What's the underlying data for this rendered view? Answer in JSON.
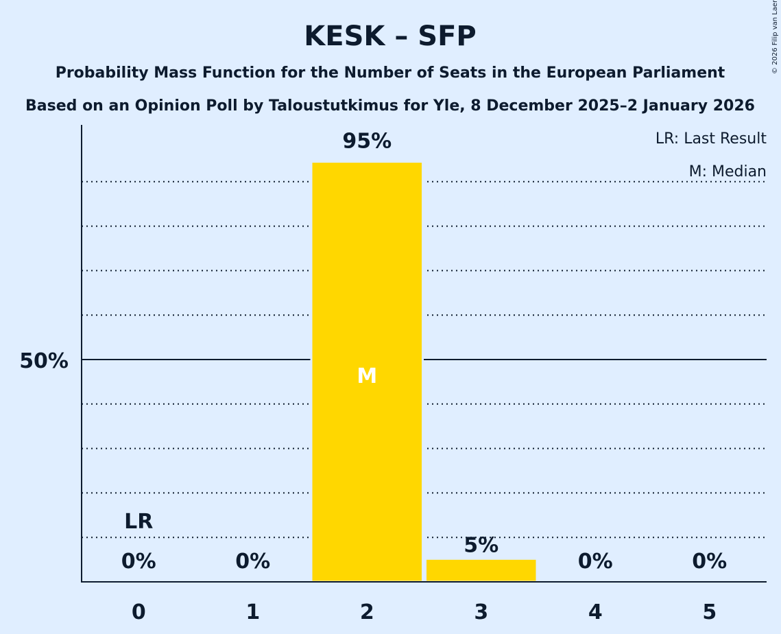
{
  "chart_data": {
    "type": "bar",
    "title": "KESK – SFP",
    "subtitle": "Probability Mass Function for the Number of Seats in the European Parliament",
    "subtitle2": "Based on an Opinion Poll by Taloustutkimus for Yle, 8 December 2025–2 January 2026",
    "copyright": "© 2026 Filip van Laenen",
    "categories": [
      "0",
      "1",
      "2",
      "3",
      "4",
      "5"
    ],
    "values": [
      0,
      0,
      94.5,
      5.2,
      0,
      0
    ],
    "data_labels": [
      "0%",
      "0%",
      "95%",
      "5%",
      "0%",
      "0%"
    ],
    "ylim": [
      0,
      100
    ],
    "y_tick_label": "50%",
    "y_tick_value": 50,
    "gridlines": [
      10,
      20,
      30,
      40,
      60,
      70,
      80,
      90
    ],
    "last_result_index": 0,
    "last_result_marker": "LR",
    "median_index": 2,
    "median_marker": "M",
    "legend": [
      "LR: Last Result",
      "M: Median"
    ],
    "legend_position": "top-right",
    "bar_color": "#ffd700",
    "background_color": "#e0eeff"
  }
}
